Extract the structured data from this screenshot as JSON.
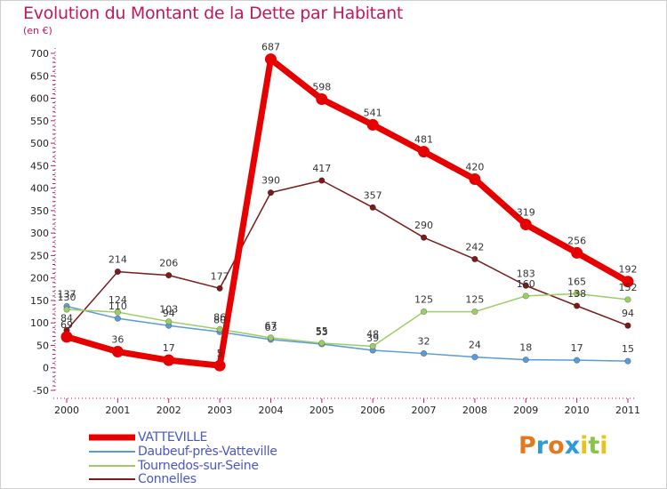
{
  "title": "Evolution du Montant de la Dette par Habitant",
  "subtitle": "(en €)",
  "brand": {
    "text": "Proxiti",
    "letter_colors": [
      "#e07a1f",
      "#2f9bd6",
      "#e07a1f",
      "#2f9bd6",
      "#e8c31c",
      "#8bc34a",
      "#e8c31c"
    ]
  },
  "chart_data": {
    "type": "line",
    "title": "Evolution du Montant de la Dette par Habitant",
    "ylabel": "(en €)",
    "xlabel": "",
    "x": [
      "2000",
      "2001",
      "2002",
      "2003",
      "2004",
      "2005",
      "2006",
      "2007",
      "2008",
      "2009",
      "2010",
      "2011"
    ],
    "ylim": [
      -50,
      700
    ],
    "yticks": [
      -50,
      0,
      50,
      100,
      150,
      200,
      250,
      300,
      350,
      400,
      450,
      500,
      550,
      600,
      650,
      700
    ],
    "grid": false,
    "legend_position": "bottom-left",
    "series": [
      {
        "name": "Connelles",
        "color": "#7b1a1a",
        "values": [
          84,
          214,
          206,
          177,
          390,
          417,
          357,
          290,
          242,
          183,
          138,
          94
        ]
      },
      {
        "name": "Daubeuf-près-Vatteville",
        "color": "#5b9bd5",
        "values": [
          137,
          110,
          94,
          80,
          63,
          53,
          39,
          32,
          24,
          18,
          17,
          15
        ]
      },
      {
        "name": "Tournedos-sur-Seine",
        "color": "#9ccc65",
        "values": [
          130,
          124,
          103,
          86,
          67,
          55,
          48,
          125,
          125,
          160,
          165,
          152
        ]
      },
      {
        "name": "VATTEVILLE",
        "color": "#e60000",
        "values": [
          69,
          36,
          17,
          5,
          687,
          598,
          541,
          481,
          420,
          319,
          256,
          192
        ]
      }
    ],
    "legend": [
      {
        "name": "VATTEVILLE",
        "color": "#e60000"
      },
      {
        "name": "Daubeuf-près-Vatteville",
        "color": "#5b9bd5"
      },
      {
        "name": "Tournedos-sur-Seine",
        "color": "#9ccc65"
      },
      {
        "name": "Connelles",
        "color": "#7b1a1a"
      }
    ]
  }
}
